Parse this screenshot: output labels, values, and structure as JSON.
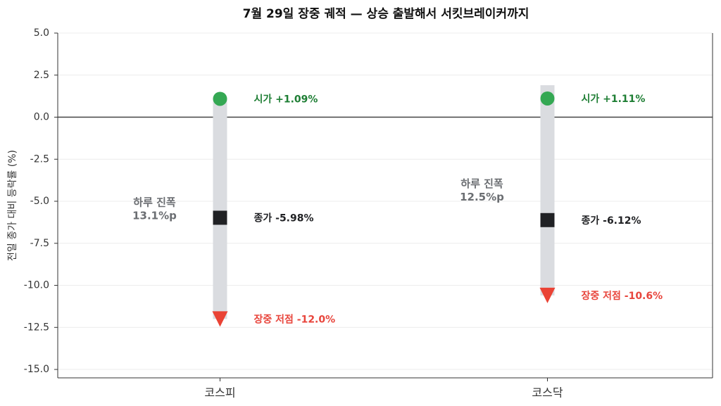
{
  "chart_data": {
    "type": "range",
    "title": "7월 29일 장중 궤적 — 상승 출발해서 서킷브레이커까지",
    "y_label": "전일 종가 대비 등락률 (%)",
    "categories": [
      "코스피",
      "코스닥"
    ],
    "high": [
      1.09,
      1.9
    ],
    "low": [
      -12.0,
      -10.6
    ],
    "range_color": "#dadce0",
    "range_labels": [
      [
        "하루 진폭",
        "13.1%p"
      ],
      [
        "하루 진폭",
        "12.5%p"
      ]
    ],
    "series": [
      {
        "name": "시가",
        "marker": "circle",
        "color": "#34a853",
        "label_color": "#1e7e34",
        "values": [
          1.09,
          1.11
        ],
        "value_labels": [
          "시가 +1.09%",
          "시가 +1.11%"
        ]
      },
      {
        "name": "종가",
        "marker": "square",
        "color": "#202124",
        "label_color": "#202124",
        "values": [
          -5.98,
          -6.12
        ],
        "value_labels": [
          "종가 -5.98%",
          "종가 -6.12%"
        ]
      },
      {
        "name": "장중 저점",
        "marker": "triangle",
        "color": "#ea4335",
        "label_color": "#e8453c",
        "values": [
          -12.0,
          -10.6
        ],
        "value_labels": [
          "장중 저점 -12.0%",
          "장중 저점 -10.6%"
        ]
      }
    ],
    "ylim": [
      -15.5,
      5.0
    ],
    "yticks": [
      {
        "value": 5.0,
        "label": "5.0"
      },
      2.5,
      {
        "value": 0.0,
        "label": "0.0"
      },
      -2.5,
      {
        "value": -5.0,
        "label": "-5.0"
      },
      -7.5,
      {
        "value": -10.0,
        "label": "-10.0"
      },
      -12.5,
      {
        "value": -15.0,
        "label": "-15.0"
      }
    ],
    "grid": true
  }
}
